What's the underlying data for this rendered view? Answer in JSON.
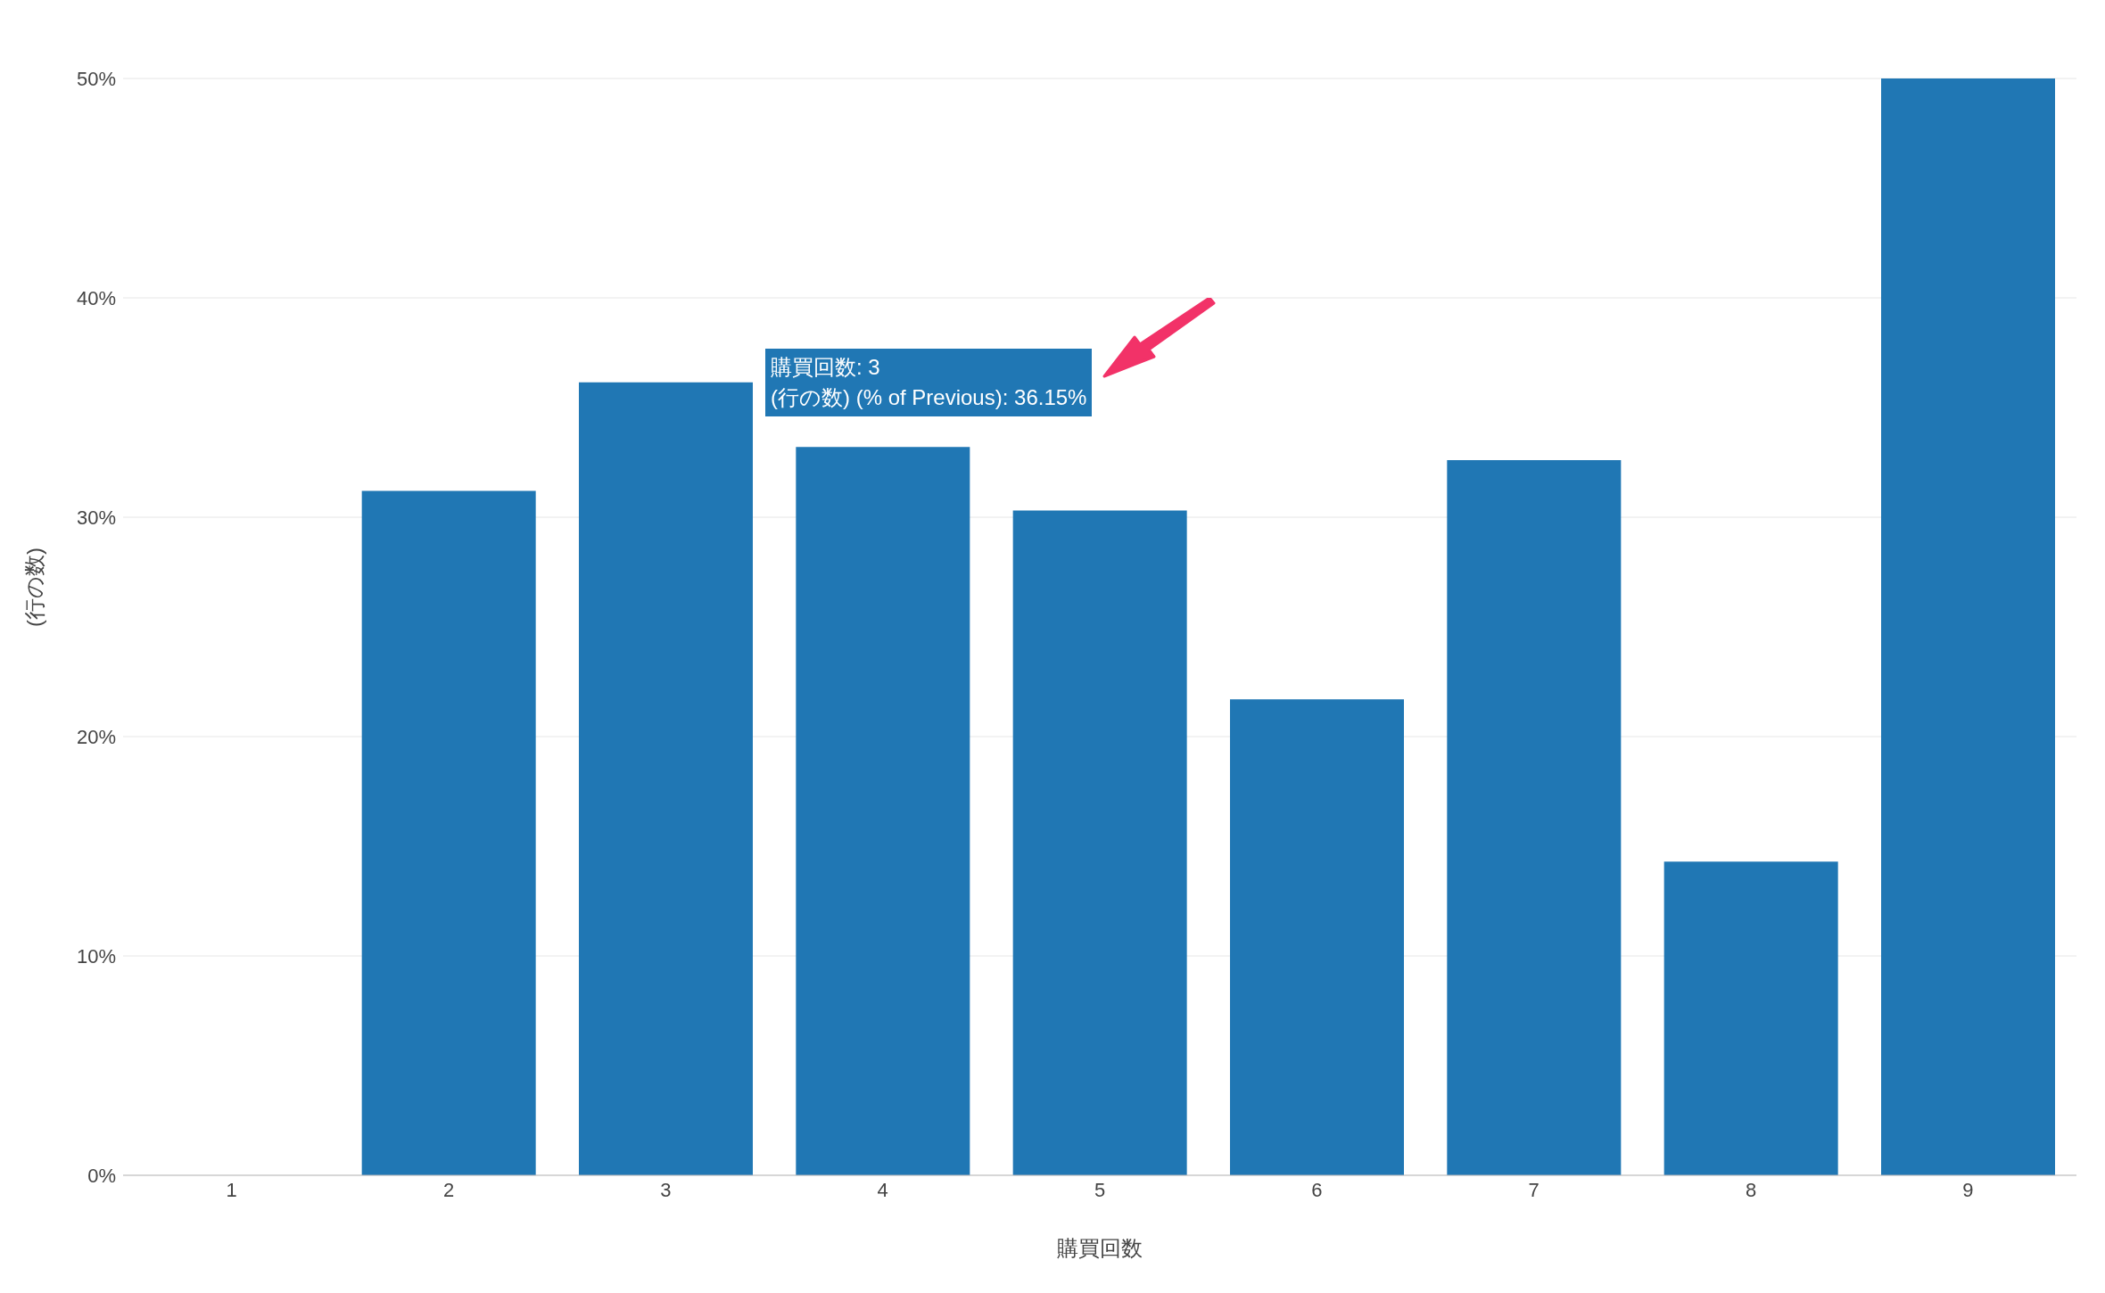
{
  "chart_data": {
    "type": "bar",
    "xlabel": "購買回数",
    "ylabel": "(行の数)",
    "categories": [
      "1",
      "2",
      "3",
      "4",
      "5",
      "6",
      "7",
      "8",
      "9"
    ],
    "values": [
      null,
      31.2,
      36.15,
      33.2,
      30.3,
      21.7,
      32.6,
      14.3,
      50
    ],
    "color": "#2077b4",
    "ylim": [
      0,
      50
    ],
    "yticks": [
      {
        "value": 0,
        "label": "0%"
      },
      {
        "value": 10,
        "label": "10%"
      },
      {
        "value": 20,
        "label": "20%"
      },
      {
        "value": 30,
        "label": "30%"
      },
      {
        "value": 40,
        "label": "40%"
      },
      {
        "value": 50,
        "label": "50%"
      }
    ],
    "grid": "y",
    "annotations": [
      "購買回数: 3\n(行の数) (% of Previous): 36.15%"
    ]
  }
}
